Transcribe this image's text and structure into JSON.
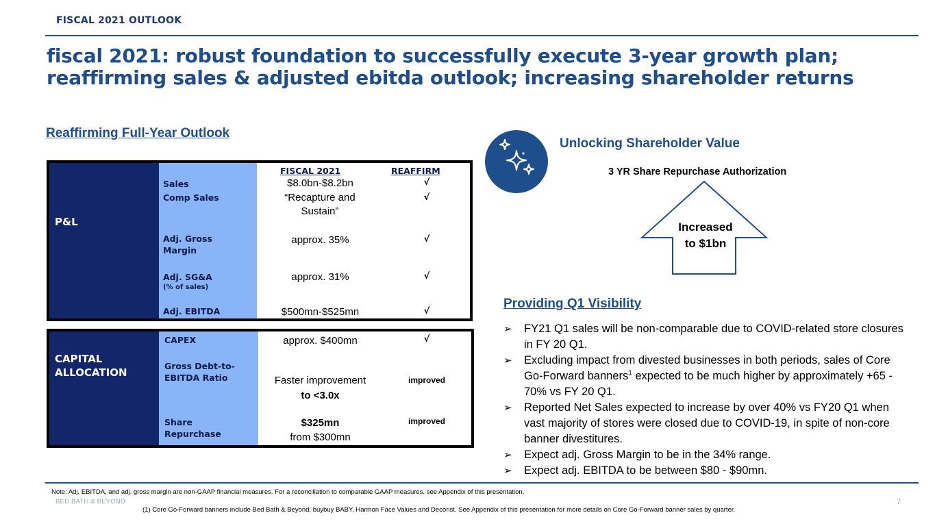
{
  "header": {
    "section_tag": "FISCAL 2021 OUTLOOK",
    "title": "fiscal 2021: robust foundation to successfully execute 3-year growth plan; reaffirming sales & adjusted ebitda outlook; increasing shareholder returns"
  },
  "left": {
    "heading": "Reaffirming Full-Year Outlook",
    "pl_table": {
      "category": "P&L",
      "col_fiscal": "FISCAL 2021",
      "col_reaffirm": "REAFFIRM",
      "rows": [
        {
          "label": "Sales",
          "sub": "",
          "value": "$8.0bn-$8.2bn",
          "status": "√"
        },
        {
          "label": "Comp Sales",
          "sub": "",
          "value": "“Recapture and Sustain”",
          "status": "√"
        },
        {
          "label": "Adj. Gross Margin",
          "sub": "",
          "value": "approx. 35%",
          "status": "√"
        },
        {
          "label": "Adj. SG&A",
          "sub": "(% of sales)",
          "value": "approx. 31%",
          "status": "√"
        },
        {
          "label": "Adj. EBITDA",
          "sub": "",
          "value": "$500mn-$525mn",
          "status": "√"
        }
      ]
    },
    "cap_table": {
      "category": "CAPITAL ALLOCATION",
      "rows": [
        {
          "label": "CAPEX",
          "value": "approx. $400mn",
          "value2": "",
          "status": "√"
        },
        {
          "label": "Gross Debt-to-EBITDA Ratio",
          "value": "Faster improvement",
          "value2": "to <3.0x",
          "status": "improved"
        },
        {
          "label": "Share Repurchase",
          "value": "$325mn",
          "value2": "from $300mn",
          "status": "improved"
        }
      ]
    }
  },
  "right": {
    "heading1": "Unlocking Shareholder Value",
    "icon": "sparkles-icon",
    "repurchase_label": "3 YR Share Repurchase Authorization",
    "arrow_text": "Increased to $1bn",
    "heading2": "Providing Q1 Visibility",
    "bullets": [
      {
        "text": "FY21 Q1 sales will be non-comparable due to COVID-related store closures in FY 20 Q1.",
        "sup": "",
        "after": ""
      },
      {
        "text": "Excluding impact from divested businesses in both periods, sales of Core Go-Forward banners",
        "sup": "1",
        "after": " expected to be much higher by approximately +65 - 70% vs FY 20 Q1."
      },
      {
        "text": "Reported Net Sales expected to increase by over 40% vs FY20 Q1 when vast majority of stores were closed due to COVID-19, in spite of non-core banner divestitures.",
        "sup": "",
        "after": ""
      },
      {
        "text": "Expect adj. Gross Margin to be in the 34% range.",
        "sup": "",
        "after": ""
      },
      {
        "text": "Expect adj. EBITDA to be between $80 - $90mn.",
        "sup": "",
        "after": ""
      }
    ]
  },
  "footer": {
    "note": "Note: Adj. EBITDA, and adj. gross margin are non-GAAP financial measures.  For a reconciliation to comparable GAAP measures, see Appendix of this presentation.",
    "brand": "BED BATH & BEYOND",
    "footnote": "(1)   Core Go-Forward banners include Bed Bath & Beyond, buybuy BABY, Harmon Face Values and Decorist.  See Appendix of this presentation for more details on Core Go-Forward banner sales by quarter.",
    "page": "7"
  },
  "colors": {
    "brand_blue": "#1f4e8c",
    "navy": "#14266a",
    "light_blue": "#8ab4f8"
  }
}
